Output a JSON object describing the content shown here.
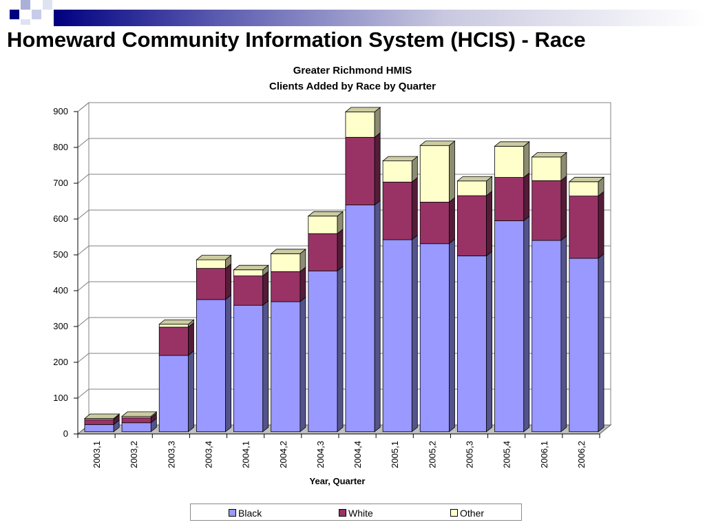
{
  "slide": {
    "title": "Homeward Community Information System (HCIS) - Race"
  },
  "chart_data": {
    "type": "bar",
    "stacked": true,
    "three_d": true,
    "title": "Greater Richmond HMIS",
    "subtitle": "Clients Added by Race by Quarter",
    "xlabel": "Year, Quarter",
    "ylabel": "",
    "ylim": [
      0,
      900
    ],
    "yticks": [
      "0",
      "100",
      "200",
      "300",
      "400",
      "500",
      "600",
      "700",
      "800",
      "900"
    ],
    "categories": [
      "2003,1",
      "2003,2",
      "2003,3",
      "2003,4",
      "2004,1",
      "2004,2",
      "2004,3",
      "2004,4",
      "2005,1",
      "2005,2",
      "2005,3",
      "2005,4",
      "2006,1",
      "2006,2"
    ],
    "series": [
      {
        "name": "Black",
        "color": "#9999ff",
        "values": [
          20,
          25,
          213,
          369,
          353,
          363,
          449,
          633,
          536,
          525,
          491,
          589,
          534,
          484
        ]
      },
      {
        "name": "White",
        "color": "#993366",
        "values": [
          14,
          14,
          79,
          87,
          82,
          84,
          104,
          189,
          161,
          116,
          168,
          121,
          167,
          174
        ]
      },
      {
        "name": "Other",
        "color": "#ffffcc",
        "values": [
          3,
          4,
          8,
          24,
          17,
          50,
          49,
          71,
          59,
          158,
          41,
          87,
          66,
          40
        ]
      }
    ],
    "grid": true,
    "legend_position": "bottom"
  }
}
